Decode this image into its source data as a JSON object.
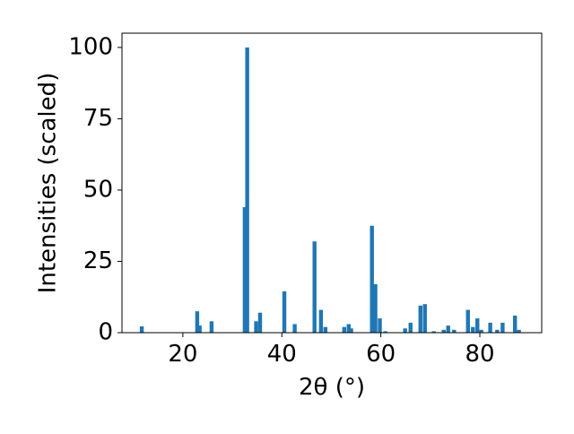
{
  "chart_data": {
    "type": "bar",
    "x_label": "2θ (°)",
    "y_label": "Intensities (scaled)",
    "x": [
      11.7,
      22.9,
      23.4,
      25.8,
      32.5,
      33.0,
      34.8,
      35.6,
      40.5,
      42.6,
      46.6,
      47.9,
      48.8,
      52.6,
      53.5,
      54.0,
      58.2,
      58.9,
      59.8,
      60.9,
      64.9,
      66.0,
      68.0,
      68.9,
      70.7,
      72.7,
      73.6,
      74.8,
      77.6,
      78.6,
      79.5,
      80.3,
      82.1,
      83.5,
      84.6,
      87.1,
      87.9
    ],
    "values": [
      2.2,
      7.5,
      2.5,
      4,
      44,
      100,
      4,
      7,
      14.5,
      3,
      32,
      8,
      2,
      2,
      3,
      1.5,
      37.5,
      17,
      5,
      0.5,
      1.5,
      3.5,
      9.5,
      10,
      0.5,
      1,
      2.5,
      1,
      8,
      2,
      5,
      1,
      3.5,
      1,
      3.5,
      6,
      1
    ],
    "color": "#1f77b4",
    "xlim": [
      7.7,
      92.5
    ],
    "xticks": [
      20,
      40,
      60,
      80
    ],
    "ylim": [
      0,
      105
    ],
    "yticks": [
      0,
      25,
      50,
      75,
      100
    ]
  }
}
